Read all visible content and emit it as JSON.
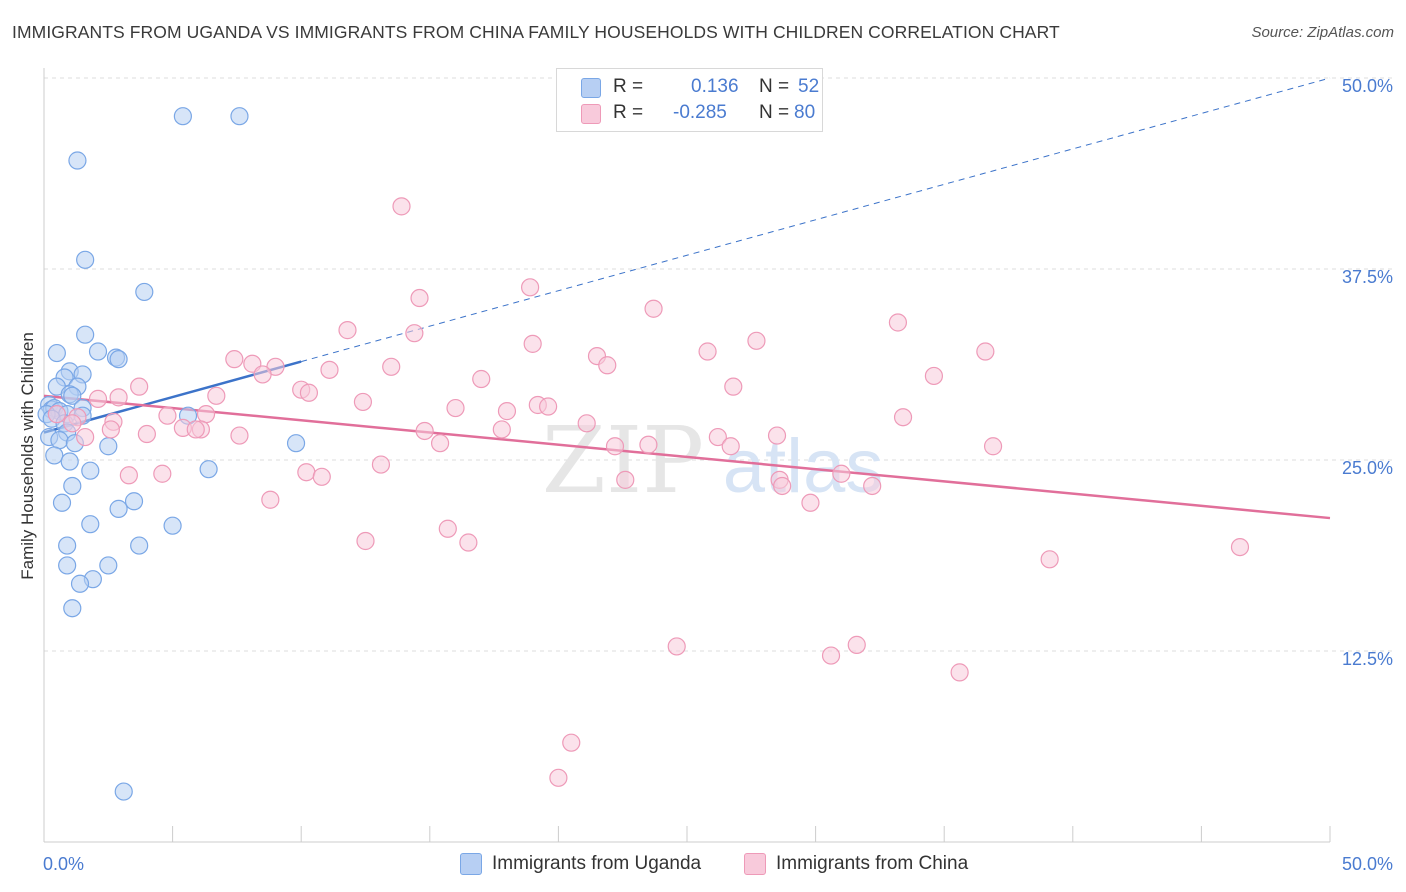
{
  "title": "IMMIGRANTS FROM UGANDA VS IMMIGRANTS FROM CHINA FAMILY HOUSEHOLDS WITH CHILDREN CORRELATION CHART",
  "source": "Source: ZipAtlas.com",
  "watermark": {
    "zip": "ZIP",
    "atlas": "atlas"
  },
  "legend": {
    "rows": [
      {
        "r_label": "R =",
        "r_value": "0.136",
        "n_label": "N =",
        "n_value": "52"
      },
      {
        "r_label": "R =",
        "r_value": "-0.285",
        "n_label": "N =",
        "n_value": "80"
      }
    ]
  },
  "chart_data": {
    "type": "scatter",
    "ylabel": "Family Households with Children",
    "xlim": [
      0,
      50
    ],
    "ylim": [
      0,
      50
    ],
    "x_tick_labels": [
      "0.0%",
      "50.0%"
    ],
    "y_ticks": [
      12.5,
      25.0,
      37.5,
      50.0
    ],
    "y_tick_labels": [
      "12.5%",
      "25.0%",
      "37.5%",
      "50.0%"
    ],
    "grid": "horizontal dashed",
    "legend_position": "top-center",
    "series": [
      {
        "name": "Immigrants from Uganda",
        "color": "#7aa7e6",
        "fill": "#b7cff3",
        "trend_color": "#3c73c9",
        "trend": {
          "x0": 0.0,
          "y0": 26.8,
          "x1": 50.0,
          "y1": 50.0,
          "solid_until_x": 10.0
        },
        "points": [
          [
            5.4,
            47.5
          ],
          [
            7.6,
            47.5
          ],
          [
            1.3,
            44.6
          ],
          [
            1.6,
            38.1
          ],
          [
            3.9,
            36.0
          ],
          [
            1.6,
            33.2
          ],
          [
            0.5,
            32.0
          ],
          [
            2.1,
            32.1
          ],
          [
            2.8,
            31.7
          ],
          [
            2.9,
            31.6
          ],
          [
            1.0,
            30.8
          ],
          [
            1.5,
            30.6
          ],
          [
            0.8,
            30.4
          ],
          [
            0.5,
            29.8
          ],
          [
            1.3,
            29.8
          ],
          [
            1.0,
            29.3
          ],
          [
            1.1,
            29.2
          ],
          [
            0.2,
            28.6
          ],
          [
            0.3,
            28.3
          ],
          [
            0.4,
            28.4
          ],
          [
            1.5,
            28.4
          ],
          [
            0.6,
            28.2
          ],
          [
            0.9,
            28.0
          ],
          [
            0.1,
            28.0
          ],
          [
            1.5,
            27.9
          ],
          [
            5.6,
            27.9
          ],
          [
            0.3,
            27.7
          ],
          [
            0.8,
            27.4
          ],
          [
            0.9,
            26.8
          ],
          [
            0.2,
            26.5
          ],
          [
            0.6,
            26.3
          ],
          [
            1.2,
            26.1
          ],
          [
            9.8,
            26.1
          ],
          [
            2.5,
            25.9
          ],
          [
            0.4,
            25.3
          ],
          [
            1.0,
            24.9
          ],
          [
            1.8,
            24.3
          ],
          [
            6.4,
            24.4
          ],
          [
            1.1,
            23.3
          ],
          [
            0.7,
            22.2
          ],
          [
            3.5,
            22.3
          ],
          [
            2.9,
            21.8
          ],
          [
            1.8,
            20.8
          ],
          [
            5.0,
            20.7
          ],
          [
            0.9,
            19.4
          ],
          [
            3.7,
            19.4
          ],
          [
            0.9,
            18.1
          ],
          [
            2.5,
            18.1
          ],
          [
            1.9,
            17.2
          ],
          [
            1.4,
            16.9
          ],
          [
            1.1,
            15.3
          ],
          [
            3.1,
            3.3
          ]
        ]
      },
      {
        "name": "Immigrants from China",
        "color": "#ee9ab8",
        "fill": "#f8cadb",
        "trend_color": "#e16f9a",
        "trend": {
          "x0": 0.0,
          "y0": 29.2,
          "x1": 50.0,
          "y1": 21.2
        },
        "points": [
          [
            13.9,
            41.6
          ],
          [
            14.6,
            35.6
          ],
          [
            18.9,
            36.3
          ],
          [
            23.7,
            34.9
          ],
          [
            33.2,
            34.0
          ],
          [
            11.8,
            33.5
          ],
          [
            14.4,
            33.3
          ],
          [
            19.0,
            32.6
          ],
          [
            21.5,
            31.8
          ],
          [
            25.8,
            32.1
          ],
          [
            27.7,
            32.8
          ],
          [
            36.6,
            32.1
          ],
          [
            7.4,
            31.6
          ],
          [
            8.1,
            31.3
          ],
          [
            9.0,
            31.1
          ],
          [
            11.1,
            30.9
          ],
          [
            13.5,
            31.1
          ],
          [
            21.9,
            31.2
          ],
          [
            8.5,
            30.6
          ],
          [
            17.0,
            30.3
          ],
          [
            34.6,
            30.5
          ],
          [
            3.7,
            29.8
          ],
          [
            10.0,
            29.6
          ],
          [
            26.8,
            29.8
          ],
          [
            2.1,
            29.0
          ],
          [
            2.9,
            29.1
          ],
          [
            6.7,
            29.2
          ],
          [
            10.3,
            29.4
          ],
          [
            12.4,
            28.8
          ],
          [
            16.0,
            28.4
          ],
          [
            18.0,
            28.2
          ],
          [
            19.2,
            28.6
          ],
          [
            19.6,
            28.5
          ],
          [
            0.5,
            28.0
          ],
          [
            1.3,
            27.8
          ],
          [
            4.8,
            27.9
          ],
          [
            6.3,
            28.0
          ],
          [
            33.4,
            27.8
          ],
          [
            1.1,
            27.4
          ],
          [
            2.7,
            27.5
          ],
          [
            5.4,
            27.1
          ],
          [
            6.1,
            27.0
          ],
          [
            2.6,
            27.0
          ],
          [
            5.9,
            27.0
          ],
          [
            14.8,
            26.9
          ],
          [
            17.8,
            27.0
          ],
          [
            21.1,
            27.4
          ],
          [
            1.6,
            26.5
          ],
          [
            4.0,
            26.7
          ],
          [
            7.6,
            26.6
          ],
          [
            26.2,
            26.5
          ],
          [
            28.5,
            26.6
          ],
          [
            15.4,
            26.1
          ],
          [
            22.2,
            25.9
          ],
          [
            23.5,
            26.0
          ],
          [
            26.7,
            25.9
          ],
          [
            36.9,
            25.9
          ],
          [
            13.1,
            24.7
          ],
          [
            10.2,
            24.2
          ],
          [
            10.8,
            23.9
          ],
          [
            4.6,
            24.1
          ],
          [
            31.0,
            24.1
          ],
          [
            22.6,
            23.7
          ],
          [
            28.6,
            23.7
          ],
          [
            28.7,
            23.3
          ],
          [
            32.2,
            23.3
          ],
          [
            8.8,
            22.4
          ],
          [
            29.8,
            22.2
          ],
          [
            15.7,
            20.5
          ],
          [
            12.5,
            19.7
          ],
          [
            16.5,
            19.6
          ],
          [
            39.1,
            18.5
          ],
          [
            46.5,
            19.3
          ],
          [
            24.6,
            12.8
          ],
          [
            30.6,
            12.2
          ],
          [
            31.6,
            12.9
          ],
          [
            35.6,
            11.1
          ],
          [
            20.5,
            6.5
          ],
          [
            20.0,
            4.2
          ],
          [
            3.3,
            24.0
          ]
        ]
      }
    ]
  }
}
